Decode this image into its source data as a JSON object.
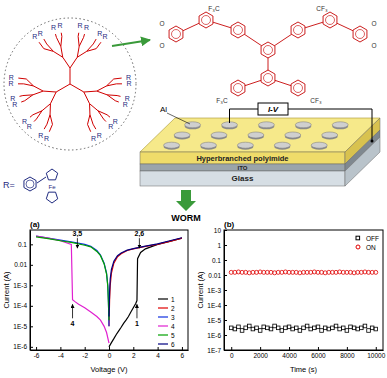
{
  "diagram": {
    "r_label": "R",
    "r_def": "R=",
    "fe": "Fe",
    "structure_labels": [
      "F₃C",
      "CF₃",
      "F₃C",
      "CF₃",
      "O",
      "O",
      "O",
      "O"
    ],
    "device": {
      "electrode": "Al",
      "measure": "I-V",
      "layer": "Hyperbranched polyimide",
      "coating": "ITO",
      "substrate": "Glass"
    },
    "behavior": "WORM"
  },
  "chart_data": [
    {
      "type": "line",
      "title": "(a)",
      "x_label": "Voltage (V)",
      "y_label": "Current (A)",
      "log": "y",
      "xlim": [
        -6.5,
        6.5
      ],
      "xticks": [
        -6,
        -4,
        -2,
        0,
        2,
        4,
        6
      ],
      "ylim": [
        7e-07,
        0.5
      ],
      "yticks": [
        {
          "value": 1e-06,
          "label": "1E-6"
        },
        {
          "value": 1e-05,
          "label": "1E-5"
        },
        {
          "value": 0.0001,
          "label": "1E-4"
        },
        {
          "value": 0.001,
          "label": "1E-3"
        },
        0.01,
        0.1
      ],
      "legend": "lower right",
      "series": [
        {
          "name": "1",
          "color": "#000000",
          "x": [
            0,
            0.2,
            0.4,
            0.6,
            0.8,
            1,
            1.2,
            1.4,
            1.6,
            1.8,
            2,
            2.2,
            2.3,
            2.35,
            2.6,
            3,
            4,
            5,
            6
          ],
          "values": [
            1e-06,
            1.6e-06,
            2.5e-06,
            4e-06,
            6e-06,
            9e-06,
            1.4e-05,
            2e-05,
            3e-05,
            5e-05,
            8e-05,
            0.00013,
            0.00018,
            0.02,
            0.04,
            0.06,
            0.1,
            0.14,
            0.2
          ]
        },
        {
          "name": "2",
          "color": "#e00000",
          "x": [
            0,
            0.05,
            0.1,
            0.2,
            0.4,
            0.7,
            1,
            1.5,
            2,
            3,
            4,
            5,
            6
          ],
          "values": [
            1e-05,
            0.0002,
            0.001,
            0.004,
            0.012,
            0.025,
            0.035,
            0.05,
            0.06,
            0.08,
            0.1,
            0.14,
            0.2
          ]
        },
        {
          "name": "3",
          "color": "#1030e0",
          "x": [
            -6,
            -5,
            -4,
            -3,
            -2,
            -1.5,
            -1,
            -0.7,
            -0.4,
            -0.2,
            -0.1,
            -0.05,
            0
          ],
          "values": [
            0.25,
            0.2,
            0.16,
            0.13,
            0.1,
            0.08,
            0.05,
            0.03,
            0.012,
            0.004,
            0.001,
            0.0002,
            1e-05
          ]
        },
        {
          "name": "4",
          "color": "#e020d0",
          "x": [
            -6,
            -5,
            -4,
            -3.1,
            -3,
            -2.8,
            -2.5,
            -2,
            -1.5,
            -1,
            -0.7,
            -0.4,
            -0.2,
            0
          ],
          "values": [
            0.25,
            0.2,
            0.15,
            0.1,
            0.0002,
            0.00016,
            0.00012,
            8e-05,
            5e-05,
            3e-05,
            2e-05,
            1e-05,
            5e-06,
            1.5e-06
          ]
        },
        {
          "name": "5",
          "color": "#00a000",
          "x": [
            -6,
            -5,
            -4,
            -3,
            -2,
            -1.5,
            -1,
            -0.7,
            -0.4,
            -0.2,
            -0.1,
            -0.05,
            0
          ],
          "values": [
            0.23,
            0.19,
            0.15,
            0.12,
            0.09,
            0.075,
            0.045,
            0.028,
            0.011,
            0.0035,
            0.0009,
            0.00015,
            2e-05
          ]
        },
        {
          "name": "6",
          "color": "#000080",
          "x": [
            0,
            0.05,
            0.1,
            0.2,
            0.4,
            0.7,
            1,
            1.5,
            2,
            3,
            4,
            5,
            6
          ],
          "values": [
            3e-05,
            0.0005,
            0.002,
            0.006,
            0.015,
            0.028,
            0.038,
            0.052,
            0.062,
            0.082,
            0.105,
            0.15,
            0.21
          ]
        }
      ],
      "annotations": [
        {
          "text": "3,5",
          "x": -2.6,
          "y": 0.25,
          "arrow": "down"
        },
        {
          "text": "2,6",
          "x": 2.5,
          "y": 0.25,
          "arrow": "down"
        },
        {
          "text": "1",
          "x": 2.3,
          "y": 1e-05,
          "arrow": "up"
        },
        {
          "text": "4",
          "x": -3,
          "y": 1e-05,
          "arrow": "up"
        }
      ]
    },
    {
      "type": "scatter",
      "title": "(b)",
      "x_label": "Time (s)",
      "y_label": "Current (A)",
      "log": "y",
      "xlim": [
        -500,
        10500
      ],
      "xticks": [
        0,
        2000,
        4000,
        6000,
        8000,
        10000
      ],
      "ylim": [
        1e-07,
        10
      ],
      "yticks": [
        {
          "value": 1e-07,
          "label": "1E-7"
        },
        {
          "value": 1e-06,
          "label": "1E-6"
        },
        {
          "value": 1e-05,
          "label": "1E-5"
        },
        {
          "value": 0.0001,
          "label": "1E-4"
        },
        {
          "value": 0.001,
          "label": "1E-3"
        },
        0.01,
        0.1,
        1,
        10
      ],
      "legend": "upper right",
      "x": [
        0,
        250,
        500,
        750,
        1000,
        1250,
        1500,
        1750,
        2000,
        2250,
        2500,
        2750,
        3000,
        3250,
        3500,
        3750,
        4000,
        4250,
        4500,
        4750,
        5000,
        5250,
        5500,
        5750,
        6000,
        6250,
        6500,
        6750,
        7000,
        7250,
        7500,
        7750,
        8000,
        8250,
        8500,
        8750,
        9000,
        9250,
        9500,
        9750,
        10000
      ],
      "series": [
        {
          "name": "OFF",
          "color": "#000000",
          "marker": "square",
          "values": [
            3e-06,
            2.5e-06,
            3.5e-06,
            2e-06,
            3e-06,
            4e-06,
            2.5e-06,
            3e-06,
            2e-06,
            3.5e-06,
            3e-06,
            2.5e-06,
            4e-06,
            3e-06,
            2e-06,
            3e-06,
            3.5e-06,
            2.5e-06,
            3e-06,
            2e-06,
            3e-06,
            4e-06,
            2.5e-06,
            3e-06,
            3.5e-06,
            2e-06,
            3e-06,
            2.5e-06,
            3e-06,
            4e-06,
            2.5e-06,
            3e-06,
            2e-06,
            3.5e-06,
            3e-06,
            2.5e-06,
            3e-06,
            4e-06,
            2e-06,
            3e-06,
            2.5e-06
          ]
        },
        {
          "name": "ON",
          "color": "#e00000",
          "marker": "circle",
          "values": [
            0.015,
            0.015,
            0.016,
            0.015,
            0.015,
            0.014,
            0.015,
            0.015,
            0.016,
            0.015,
            0.015,
            0.015,
            0.014,
            0.015,
            0.015,
            0.016,
            0.015,
            0.015,
            0.015,
            0.014,
            0.015,
            0.015,
            0.015,
            0.016,
            0.015,
            0.015,
            0.014,
            0.015,
            0.015,
            0.015,
            0.016,
            0.015,
            0.015,
            0.015,
            0.014,
            0.015,
            0.015,
            0.016,
            0.015,
            0.015,
            0.015
          ]
        }
      ]
    }
  ]
}
